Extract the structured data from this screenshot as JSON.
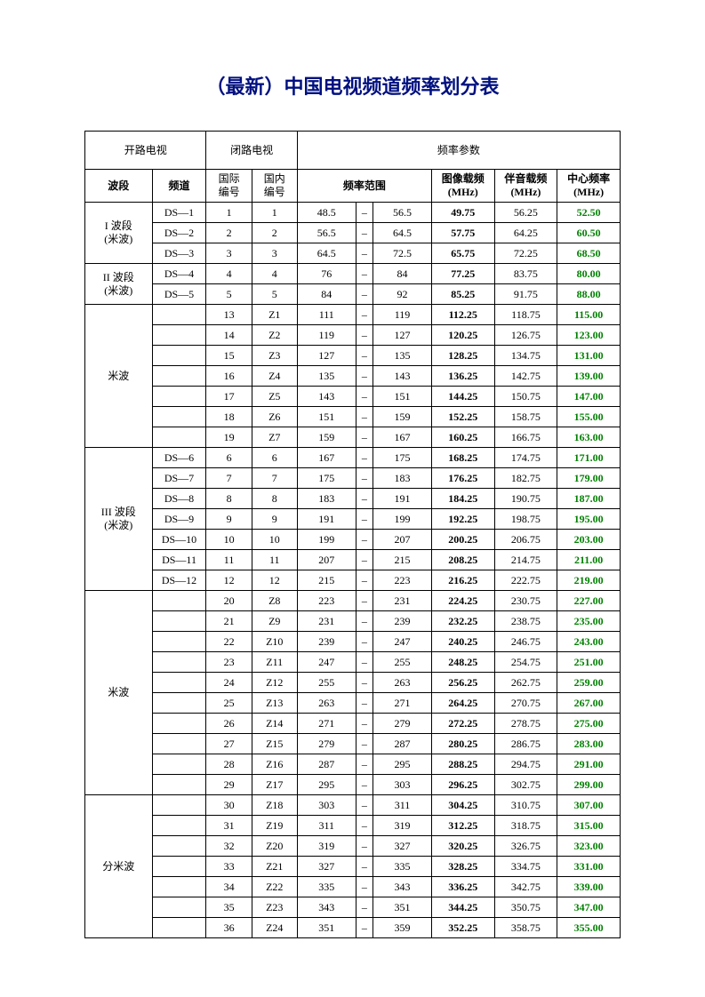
{
  "title": "（最新）中国电视频道频率划分表",
  "headers": {
    "open_tv": "开路电视",
    "closed_tv": "闭路电视",
    "freq_params": "频率参数",
    "band": "波段",
    "channel": "频道",
    "intl_no_l1": "国际",
    "intl_no_l2": "编号",
    "dom_no_l1": "国内",
    "dom_no_l2": "编号",
    "freq_range": "频率范围",
    "image_l1": "图像载频",
    "image_l2": "(MHz)",
    "audio_l1": "伴音载频",
    "audio_l2": "(MHz)",
    "center_l1": "中心频率",
    "center_l2": "(MHz)"
  },
  "sections": [
    {
      "band": "I 波段\n(米波)",
      "rows": [
        {
          "ch": "DS—1",
          "intl": "1",
          "dom": "1",
          "lo": "48.5",
          "hi": "56.5",
          "img": "49.75",
          "aud": "56.25",
          "ctr": "52.50"
        },
        {
          "ch": "DS—2",
          "intl": "2",
          "dom": "2",
          "lo": "56.5",
          "hi": "64.5",
          "img": "57.75",
          "aud": "64.25",
          "ctr": "60.50"
        },
        {
          "ch": "DS—3",
          "intl": "3",
          "dom": "3",
          "lo": "64.5",
          "hi": "72.5",
          "img": "65.75",
          "aud": "72.25",
          "ctr": "68.50"
        }
      ]
    },
    {
      "band": "II 波段\n(米波)",
      "rows": [
        {
          "ch": "DS—4",
          "intl": "4",
          "dom": "4",
          "lo": "76",
          "hi": "84",
          "img": "77.25",
          "aud": "83.75",
          "ctr": "80.00"
        },
        {
          "ch": "DS—5",
          "intl": "5",
          "dom": "5",
          "lo": "84",
          "hi": "92",
          "img": "85.25",
          "aud": "91.75",
          "ctr": "88.00"
        }
      ]
    },
    {
      "band": "米波",
      "rows": [
        {
          "ch": "",
          "intl": "13",
          "dom": "Z1",
          "lo": "111",
          "hi": "119",
          "img": "112.25",
          "aud": "118.75",
          "ctr": "115.00"
        },
        {
          "ch": "",
          "intl": "14",
          "dom": "Z2",
          "lo": "119",
          "hi": "127",
          "img": "120.25",
          "aud": "126.75",
          "ctr": "123.00"
        },
        {
          "ch": "",
          "intl": "15",
          "dom": "Z3",
          "lo": "127",
          "hi": "135",
          "img": "128.25",
          "aud": "134.75",
          "ctr": "131.00"
        },
        {
          "ch": "",
          "intl": "16",
          "dom": "Z4",
          "lo": "135",
          "hi": "143",
          "img": "136.25",
          "aud": "142.75",
          "ctr": "139.00"
        },
        {
          "ch": "",
          "intl": "17",
          "dom": "Z5",
          "lo": "143",
          "hi": "151",
          "img": "144.25",
          "aud": "150.75",
          "ctr": "147.00"
        },
        {
          "ch": "",
          "intl": "18",
          "dom": "Z6",
          "lo": "151",
          "hi": "159",
          "img": "152.25",
          "aud": "158.75",
          "ctr": "155.00"
        },
        {
          "ch": "",
          "intl": "19",
          "dom": "Z7",
          "lo": "159",
          "hi": "167",
          "img": "160.25",
          "aud": "166.75",
          "ctr": "163.00"
        }
      ]
    },
    {
      "band": "III 波段\n(米波)",
      "rows": [
        {
          "ch": "DS—6",
          "intl": "6",
          "dom": "6",
          "lo": "167",
          "hi": "175",
          "img": "168.25",
          "aud": "174.75",
          "ctr": "171.00"
        },
        {
          "ch": "DS—7",
          "intl": "7",
          "dom": "7",
          "lo": "175",
          "hi": "183",
          "img": "176.25",
          "aud": "182.75",
          "ctr": "179.00"
        },
        {
          "ch": "DS—8",
          "intl": "8",
          "dom": "8",
          "lo": "183",
          "hi": "191",
          "img": "184.25",
          "aud": "190.75",
          "ctr": "187.00"
        },
        {
          "ch": "DS—9",
          "intl": "9",
          "dom": "9",
          "lo": "191",
          "hi": "199",
          "img": "192.25",
          "aud": "198.75",
          "ctr": "195.00"
        },
        {
          "ch": "DS—10",
          "intl": "10",
          "dom": "10",
          "lo": "199",
          "hi": "207",
          "img": "200.25",
          "aud": "206.75",
          "ctr": "203.00"
        },
        {
          "ch": "DS—11",
          "intl": "11",
          "dom": "11",
          "lo": "207",
          "hi": "215",
          "img": "208.25",
          "aud": "214.75",
          "ctr": "211.00"
        },
        {
          "ch": "DS—12",
          "intl": "12",
          "dom": "12",
          "lo": "215",
          "hi": "223",
          "img": "216.25",
          "aud": "222.75",
          "ctr": "219.00"
        }
      ]
    },
    {
      "band": "米波",
      "rows": [
        {
          "ch": "",
          "intl": "20",
          "dom": "Z8",
          "lo": "223",
          "hi": "231",
          "img": "224.25",
          "aud": "230.75",
          "ctr": "227.00"
        },
        {
          "ch": "",
          "intl": "21",
          "dom": "Z9",
          "lo": "231",
          "hi": "239",
          "img": "232.25",
          "aud": "238.75",
          "ctr": "235.00"
        },
        {
          "ch": "",
          "intl": "22",
          "dom": "Z10",
          "lo": "239",
          "hi": "247",
          "img": "240.25",
          "aud": "246.75",
          "ctr": "243.00"
        },
        {
          "ch": "",
          "intl": "23",
          "dom": "Z11",
          "lo": "247",
          "hi": "255",
          "img": "248.25",
          "aud": "254.75",
          "ctr": "251.00"
        },
        {
          "ch": "",
          "intl": "24",
          "dom": "Z12",
          "lo": "255",
          "hi": "263",
          "img": "256.25",
          "aud": "262.75",
          "ctr": "259.00"
        },
        {
          "ch": "",
          "intl": "25",
          "dom": "Z13",
          "lo": "263",
          "hi": "271",
          "img": "264.25",
          "aud": "270.75",
          "ctr": "267.00"
        },
        {
          "ch": "",
          "intl": "26",
          "dom": "Z14",
          "lo": "271",
          "hi": "279",
          "img": "272.25",
          "aud": "278.75",
          "ctr": "275.00"
        },
        {
          "ch": "",
          "intl": "27",
          "dom": "Z15",
          "lo": "279",
          "hi": "287",
          "img": "280.25",
          "aud": "286.75",
          "ctr": "283.00"
        },
        {
          "ch": "",
          "intl": "28",
          "dom": "Z16",
          "lo": "287",
          "hi": "295",
          "img": "288.25",
          "aud": "294.75",
          "ctr": "291.00"
        },
        {
          "ch": "",
          "intl": "29",
          "dom": "Z17",
          "lo": "295",
          "hi": "303",
          "img": "296.25",
          "aud": "302.75",
          "ctr": "299.00"
        }
      ]
    },
    {
      "band": "分米波",
      "rows": [
        {
          "ch": "",
          "intl": "30",
          "dom": "Z18",
          "lo": "303",
          "hi": "311",
          "img": "304.25",
          "aud": "310.75",
          "ctr": "307.00"
        },
        {
          "ch": "",
          "intl": "31",
          "dom": "Z19",
          "lo": "311",
          "hi": "319",
          "img": "312.25",
          "aud": "318.75",
          "ctr": "315.00"
        },
        {
          "ch": "",
          "intl": "32",
          "dom": "Z20",
          "lo": "319",
          "hi": "327",
          "img": "320.25",
          "aud": "326.75",
          "ctr": "323.00"
        },
        {
          "ch": "",
          "intl": "33",
          "dom": "Z21",
          "lo": "327",
          "hi": "335",
          "img": "328.25",
          "aud": "334.75",
          "ctr": "331.00"
        },
        {
          "ch": "",
          "intl": "34",
          "dom": "Z22",
          "lo": "335",
          "hi": "343",
          "img": "336.25",
          "aud": "342.75",
          "ctr": "339.00"
        },
        {
          "ch": "",
          "intl": "35",
          "dom": "Z23",
          "lo": "343",
          "hi": "351",
          "img": "344.25",
          "aud": "350.75",
          "ctr": "347.00"
        },
        {
          "ch": "",
          "intl": "36",
          "dom": "Z24",
          "lo": "351",
          "hi": "359",
          "img": "352.25",
          "aud": "358.75",
          "ctr": "355.00"
        }
      ]
    }
  ],
  "dash": "–",
  "colors": {
    "title": "#001080",
    "center": "#008000",
    "text": "#000000",
    "border": "#000000"
  }
}
